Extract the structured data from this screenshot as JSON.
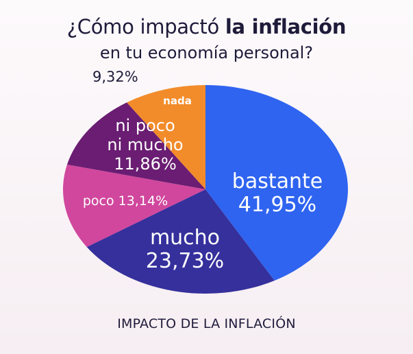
{
  "title": {
    "prefix": "¿Cómo impactó ",
    "bold": "la inflación",
    "line2": "en tu economía personal?"
  },
  "caption": "IMPACTO DE LA INFLACIÓN",
  "chart_data": {
    "type": "pie",
    "slices": [
      {
        "label": "nada",
        "value_text": "9,32%",
        "value": 9.32,
        "color": "#f28c2b",
        "text_color": "#ffffff"
      },
      {
        "label": "bastante",
        "value_text": "41,95%",
        "value": 41.95,
        "color": "#2f64f0",
        "text_color": "#ffffff"
      },
      {
        "label": "mucho",
        "value_text": "23,73%",
        "value": 23.73,
        "color": "#35309c",
        "text_color": "#ffffff"
      },
      {
        "label": "poco",
        "value_text": "13,14%",
        "value": 13.14,
        "color": "#d0479d",
        "text_color": "#ffffff"
      },
      {
        "label": "ni poco ni mucho",
        "label_lines": [
          "ni poco",
          "ni mucho"
        ],
        "value_text": "11,86%",
        "value": 11.86,
        "color": "#6a1d72",
        "text_color": "#ffffff"
      }
    ]
  }
}
